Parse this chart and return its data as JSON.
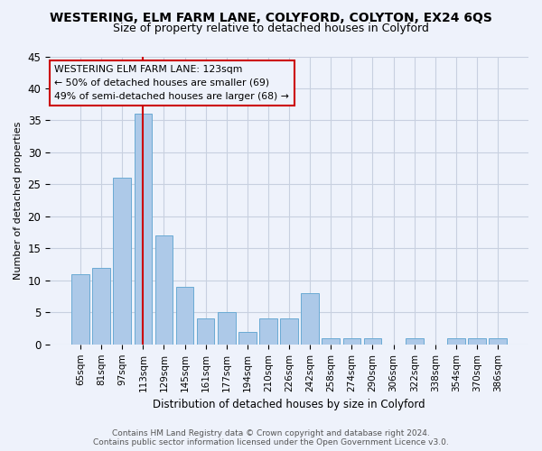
{
  "title": "WESTERING, ELM FARM LANE, COLYFORD, COLYTON, EX24 6QS",
  "subtitle": "Size of property relative to detached houses in Colyford",
  "xlabel": "Distribution of detached houses by size in Colyford",
  "ylabel": "Number of detached properties",
  "categories": [
    "65sqm",
    "81sqm",
    "97sqm",
    "113sqm",
    "129sqm",
    "145sqm",
    "161sqm",
    "177sqm",
    "194sqm",
    "210sqm",
    "226sqm",
    "242sqm",
    "258sqm",
    "274sqm",
    "290sqm",
    "306sqm",
    "322sqm",
    "338sqm",
    "354sqm",
    "370sqm",
    "386sqm"
  ],
  "values": [
    11,
    12,
    26,
    36,
    17,
    9,
    4,
    5,
    2,
    4,
    4,
    8,
    1,
    1,
    1,
    0,
    1,
    0,
    1,
    1,
    1
  ],
  "bar_color": "#adc9e8",
  "bar_edge_color": "#6aaad4",
  "highlight_index": 3,
  "highlight_line_color": "#cc0000",
  "ylim": [
    0,
    45
  ],
  "yticks": [
    0,
    5,
    10,
    15,
    20,
    25,
    30,
    35,
    40,
    45
  ],
  "annotation_title": "WESTERING ELM FARM LANE: 123sqm",
  "annotation_line1": "← 50% of detached houses are smaller (69)",
  "annotation_line2": "49% of semi-detached houses are larger (68) →",
  "footer_line1": "Contains HM Land Registry data © Crown copyright and database right 2024.",
  "footer_line2": "Contains public sector information licensed under the Open Government Licence v3.0.",
  "background_color": "#eef2fb",
  "grid_color": "#c8d0e0",
  "title_fontsize": 10,
  "subtitle_fontsize": 9,
  "annotation_box_edge_color": "#cc0000",
  "footer_fontsize": 6.5
}
